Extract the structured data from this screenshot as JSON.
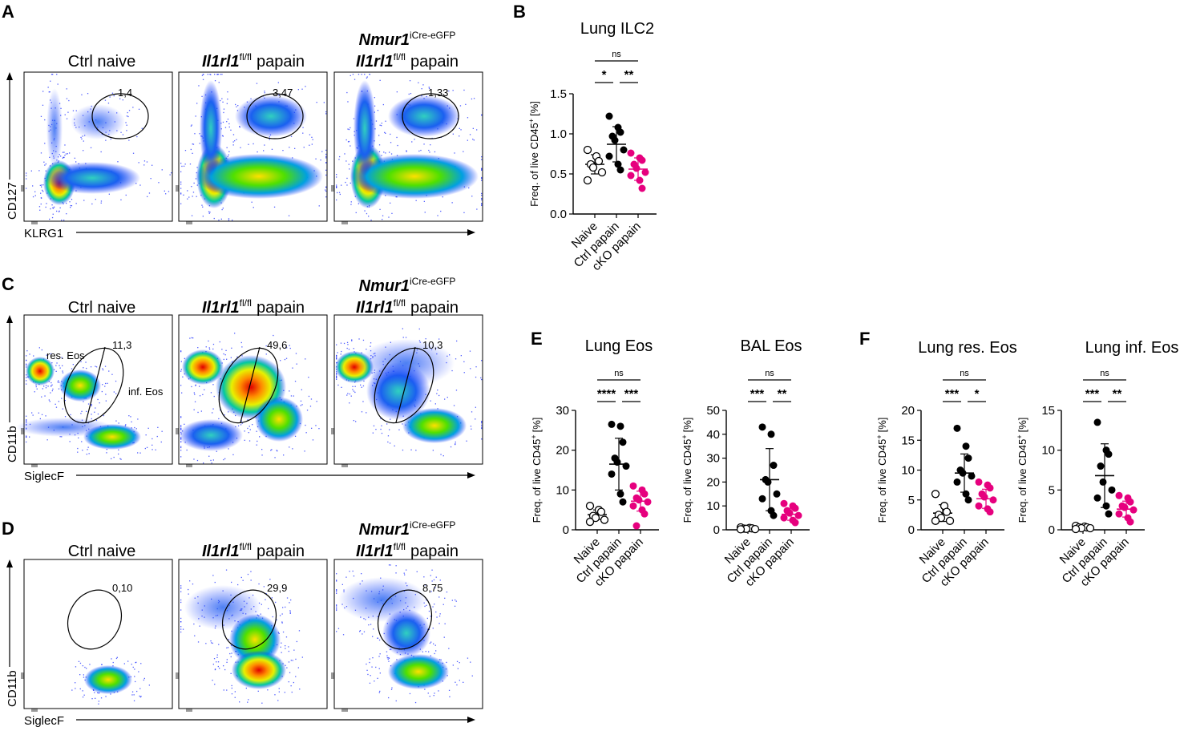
{
  "panels": {
    "A": "A",
    "B": "B",
    "C": "C",
    "D": "D",
    "E": "E",
    "F": "F"
  },
  "flow_titles": {
    "naive": "Ctrl naive",
    "ctrl_gene": "Il1rl1",
    "ctrl_sup": "fl/fl",
    "ctrl_rest": "papain",
    "ko_line1_gene": "Nmur1",
    "ko_line1_sup": "iCre-eGFP",
    "ko_line2_gene": "Il1rl1",
    "ko_line2_sup": "fl/fl",
    "ko_line2_rest": "papain"
  },
  "flow_rows": [
    {
      "x_label": "KLRG1",
      "y_label": "CD127",
      "gates": [
        "1,4",
        "3,47",
        "1,33"
      ]
    },
    {
      "x_label": "SiglecF",
      "y_label": "CD11b",
      "gates": [
        "11,3",
        "49,6",
        "10,3"
      ],
      "res_label": "res. Eos",
      "inf_label": "inf. Eos"
    },
    {
      "x_label": "SiglecF",
      "y_label": "CD11b",
      "gates": [
        "0,10",
        "29,9",
        "8,75"
      ]
    }
  ],
  "colors": {
    "ctrl": "#000000",
    "cko": "#e6007e",
    "naive": "#000000"
  },
  "chart_data": [
    {
      "type": "scatter",
      "id": "B",
      "title": "Lung ILC2",
      "ylabel": "Freq. of live CD45",
      "ylabel_sup": "+",
      "ylabel_unit": "[%]",
      "categories": [
        "Naive",
        "Ctrl papain",
        "cKO papain"
      ],
      "ylim": [
        0,
        1.5
      ],
      "yticks": [
        "0.0",
        "0.5",
        "1.0",
        "1.5"
      ],
      "series": [
        {
          "name": "Naive",
          "values": [
            0.8,
            0.72,
            0.66,
            0.62,
            0.58,
            0.52,
            0.42
          ],
          "mean": 0.62,
          "sd": 0.12
        },
        {
          "name": "Ctrl papain",
          "values": [
            1.22,
            1.08,
            1.02,
            0.97,
            0.92,
            0.8,
            0.72,
            0.62,
            0.55
          ],
          "mean": 0.87,
          "sd": 0.22
        },
        {
          "name": "cKO papain",
          "values": [
            0.76,
            0.7,
            0.67,
            0.62,
            0.57,
            0.52,
            0.48,
            0.42,
            0.32
          ],
          "mean": 0.56,
          "sd": 0.14
        }
      ],
      "significance": [
        {
          "pair": "0-1",
          "label": "*"
        },
        {
          "pair": "1-2",
          "label": "**"
        },
        {
          "pair": "0-2",
          "label": "ns"
        }
      ]
    },
    {
      "type": "scatter",
      "id": "E1",
      "title": "Lung Eos",
      "ylabel": "Freq. of live CD45",
      "ylabel_sup": "+",
      "ylabel_unit": "[%]",
      "categories": [
        "Naive",
        "Ctrl papain",
        "cKO papain"
      ],
      "ylim": [
        0,
        30
      ],
      "yticks": [
        "0",
        "10",
        "20",
        "30"
      ],
      "series": [
        {
          "name": "Naive",
          "values": [
            6,
            5,
            4.5,
            3.5,
            3,
            2.5,
            2
          ],
          "mean": 3.8,
          "sd": 1.2
        },
        {
          "name": "Ctrl papain",
          "values": [
            26.5,
            26,
            22,
            18,
            17,
            16,
            14,
            9,
            7
          ],
          "mean": 16.5,
          "sd": 6.5
        },
        {
          "name": "cKO papain",
          "values": [
            11,
            10,
            9,
            8,
            7.5,
            7,
            6,
            5,
            4,
            1
          ],
          "mean": 7.2,
          "sd": 2.5
        }
      ],
      "significance": [
        {
          "pair": "0-1",
          "label": "****"
        },
        {
          "pair": "1-2",
          "label": "***"
        },
        {
          "pair": "0-2",
          "label": "ns"
        }
      ]
    },
    {
      "type": "scatter",
      "id": "E2",
      "title": "BAL Eos",
      "ylabel": "Freq. of live CD45",
      "ylabel_sup": "+",
      "ylabel_unit": "[%]",
      "categories": [
        "Naive",
        "Ctrl papain",
        "cKO papain"
      ],
      "ylim": [
        0,
        50
      ],
      "yticks": [
        "0",
        "10",
        "20",
        "30",
        "40",
        "50"
      ],
      "series": [
        {
          "name": "Naive",
          "values": [
            1,
            0.8,
            0.6,
            0.5,
            0.4,
            0.3,
            0.2
          ],
          "mean": 0.5,
          "sd": 0.3
        },
        {
          "name": "Ctrl papain",
          "values": [
            43,
            40,
            27,
            21,
            20,
            15,
            13,
            8,
            6
          ],
          "mean": 21,
          "sd": 13
        },
        {
          "name": "cKO papain",
          "values": [
            11,
            10,
            9,
            8,
            7,
            6,
            5,
            4,
            3
          ],
          "mean": 6.5,
          "sd": 2.5
        }
      ],
      "significance": [
        {
          "pair": "0-1",
          "label": "***"
        },
        {
          "pair": "1-2",
          "label": "**"
        },
        {
          "pair": "0-2",
          "label": "ns"
        }
      ]
    },
    {
      "type": "scatter",
      "id": "F1",
      "title": "Lung res. Eos",
      "ylabel": "Freq. of live CD45",
      "ylabel_sup": "+",
      "ylabel_unit": "[%]",
      "categories": [
        "Naive",
        "Ctrl papain",
        "cKO papain"
      ],
      "ylim": [
        0,
        20
      ],
      "yticks": [
        "0",
        "5",
        "10",
        "15",
        "20"
      ],
      "series": [
        {
          "name": "Naive",
          "values": [
            6,
            4,
            3,
            2.5,
            2,
            1.5,
            1.5
          ],
          "mean": 2.8,
          "sd": 1.4
        },
        {
          "name": "Ctrl papain",
          "values": [
            17,
            14,
            12,
            10,
            9.5,
            9,
            8,
            6,
            5
          ],
          "mean": 9.5,
          "sd": 3.2
        },
        {
          "name": "cKO papain",
          "values": [
            8,
            7.5,
            7,
            6,
            5.5,
            5,
            4,
            3.5,
            3
          ],
          "mean": 5.2,
          "sd": 1.6
        }
      ],
      "significance": [
        {
          "pair": "0-1",
          "label": "***"
        },
        {
          "pair": "1-2",
          "label": "*"
        },
        {
          "pair": "0-2",
          "label": "ns"
        }
      ]
    },
    {
      "type": "scatter",
      "id": "F2",
      "title": "Lung inf.  Eos",
      "ylabel": "Freq. of live CD45",
      "ylabel_sup": "+",
      "ylabel_unit": "[%]",
      "categories": [
        "Naive",
        "Ctrl papain",
        "cKO papain"
      ],
      "ylim": [
        0,
        15
      ],
      "yticks": [
        "0",
        "5",
        "10",
        "15"
      ],
      "series": [
        {
          "name": "Naive",
          "values": [
            0.5,
            0.4,
            0.3,
            0.3,
            0.2,
            0.2,
            0.1
          ],
          "mean": 0.3,
          "sd": 0.15
        },
        {
          "name": "Ctrl papain",
          "values": [
            13.5,
            10,
            9.5,
            8,
            6,
            5,
            4,
            3,
            2
          ],
          "mean": 6.8,
          "sd": 4
        },
        {
          "name": "cKO papain",
          "values": [
            4.3,
            4,
            3.5,
            3,
            2.8,
            2.5,
            2,
            1.5,
            1
          ],
          "mean": 2.6,
          "sd": 1
        }
      ],
      "significance": [
        {
          "pair": "0-1",
          "label": "***"
        },
        {
          "pair": "1-2",
          "label": "**"
        },
        {
          "pair": "0-2",
          "label": "ns"
        }
      ]
    }
  ]
}
